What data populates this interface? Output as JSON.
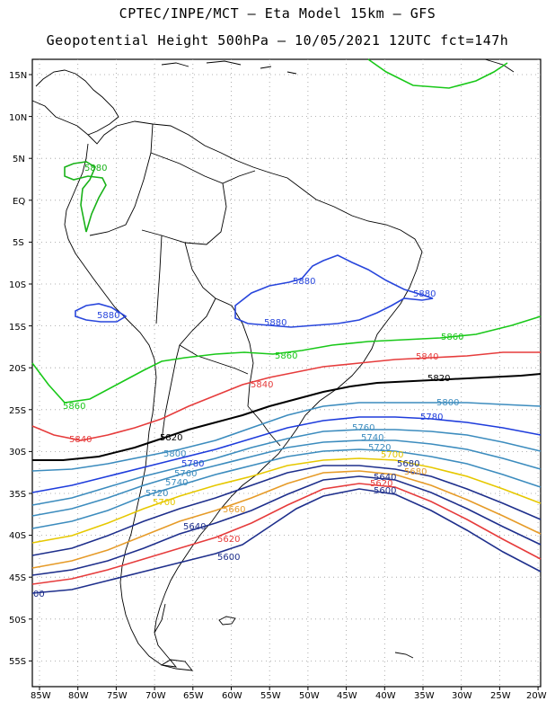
{
  "title_line1": "CPTEC/INPE/MCT –  Eta Model 15km – GFS",
  "title_line2": "Geopotential Height 500hPa – 10/05/2021 12UTC fct=147h",
  "lat_labels": [
    "15N",
    "10N",
    "5N",
    "EQ",
    "5S",
    "10S",
    "15S",
    "20S",
    "25S",
    "30S",
    "35S",
    "40S",
    "45S",
    "50S",
    "55S"
  ],
  "lon_labels": [
    "85W",
    "80W",
    "75W",
    "70W",
    "65W",
    "60W",
    "55W",
    "50W",
    "45W",
    "40W",
    "35W",
    "30W",
    "25W",
    "20W"
  ],
  "contour_labels": [
    {
      "text": "5880",
      "color": "#19b219"
    },
    {
      "text": "5880",
      "color": "#2846dc"
    },
    {
      "text": "5880",
      "color": "#2846dc"
    },
    {
      "text": "5880",
      "color": "#2846dc"
    },
    {
      "text": "5880",
      "color": "#2846dc"
    },
    {
      "text": "5860",
      "color": "#19c819"
    },
    {
      "text": "5860",
      "color": "#19c819"
    },
    {
      "text": "5860",
      "color": "#19c819"
    },
    {
      "text": "5840",
      "color": "#e63c3c"
    },
    {
      "text": "5840",
      "color": "#e63c3c"
    },
    {
      "text": "5840",
      "color": "#e63c3c"
    },
    {
      "text": "5820",
      "color": "#000000"
    },
    {
      "text": "5820",
      "color": "#000000"
    },
    {
      "text": "5800",
      "color": "#3c8cbe"
    },
    {
      "text": "5800",
      "color": "#3c8cbe"
    },
    {
      "text": "5780",
      "color": "#1e3cdc"
    },
    {
      "text": "5780",
      "color": "#1e3cdc"
    },
    {
      "text": "5760",
      "color": "#3c8cbe"
    },
    {
      "text": "5760",
      "color": "#3c8cbe"
    },
    {
      "text": "5740",
      "color": "#3c8cbe"
    },
    {
      "text": "5740",
      "color": "#3c8cbe"
    },
    {
      "text": "5720",
      "color": "#3c8cbe"
    },
    {
      "text": "5720",
      "color": "#3c8cbe"
    },
    {
      "text": "5700",
      "color": "#e6c800"
    },
    {
      "text": "5700",
      "color": "#e6c800"
    },
    {
      "text": "5680",
      "color": "#1e2f8c"
    },
    {
      "text": "5680",
      "color": "#e69b28"
    },
    {
      "text": "5660",
      "color": "#e69b28"
    },
    {
      "text": "5640",
      "color": "#1e2f8c"
    },
    {
      "text": "5640",
      "color": "#1e2f8c"
    },
    {
      "text": "5620",
      "color": "#e63c3c"
    },
    {
      "text": "5620",
      "color": "#e63c3c"
    },
    {
      "text": "5600",
      "color": "#1e2f8c"
    },
    {
      "text": "5600",
      "color": "#1e2f8c"
    },
    {
      "text": "00",
      "color": "#1e2f8c"
    }
  ],
  "colors": {
    "c5880": "#2846dc",
    "c5860": "#19c819",
    "c5840": "#e63c3c",
    "c5820": "#000000",
    "c5800": "#3c8cbe",
    "c5780": "#1e3cdc",
    "c5760": "#3c8cbe",
    "c5740": "#3c8cbe",
    "c5720": "#3c8cbe",
    "c5700": "#e6c800",
    "c5680": "#e69b28",
    "c5660": "#e69b28",
    "c5640": "#1e2f8c",
    "c5620": "#e63c3c",
    "c5600": "#1e2f8c"
  }
}
